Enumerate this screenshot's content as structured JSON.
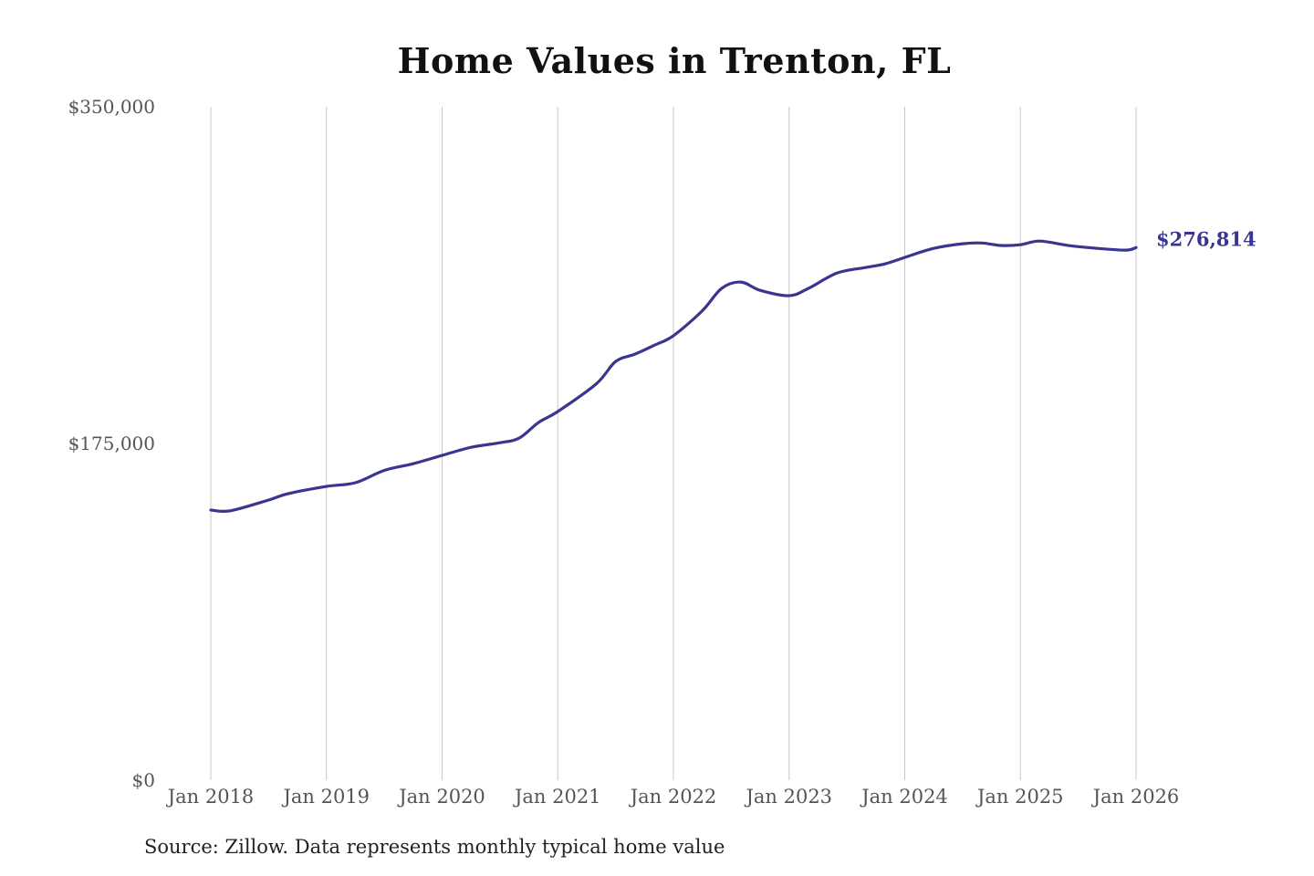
{
  "chart_data": {
    "type": "line",
    "title": "Home Values in Trenton, FL",
    "xlabel": "",
    "ylabel": "",
    "ylim": [
      0,
      350000
    ],
    "xlim": [
      "2018-01",
      "2026-01"
    ],
    "grid": "vertical",
    "y_ticks": [
      "$0",
      "$175,000",
      "$350,000"
    ],
    "y_tick_values": [
      0,
      175000,
      350000
    ],
    "x_ticks": [
      "Jan 2018",
      "Jan 2019",
      "Jan 2020",
      "Jan 2021",
      "Jan 2022",
      "Jan 2023",
      "Jan 2024",
      "Jan 2025",
      "Jan 2026"
    ],
    "x_tick_values": [
      "2018-01",
      "2019-01",
      "2020-01",
      "2021-01",
      "2022-01",
      "2023-01",
      "2024-01",
      "2025-01",
      "2026-01"
    ],
    "line_color": "#3a3591",
    "end_label": "$276,814",
    "series": [
      {
        "x": [
          "2018-01",
          "2018-03",
          "2018-07",
          "2018-09",
          "2019-01",
          "2019-04",
          "2019-07",
          "2019-10",
          "2020-01",
          "2020-04",
          "2020-07",
          "2020-09",
          "2020-11",
          "2021-01",
          "2021-05",
          "2021-07",
          "2021-09",
          "2021-11",
          "2022-01",
          "2022-04",
          "2022-06",
          "2022-08",
          "2022-10",
          "2023-01",
          "2023-03",
          "2023-06",
          "2023-09",
          "2023-11",
          "2024-01",
          "2024-04",
          "2024-07",
          "2024-09",
          "2024-11",
          "2025-01",
          "2025-03",
          "2025-06",
          "2025-09",
          "2025-12",
          "2026-01"
        ],
        "y": [
          140400,
          140000,
          145600,
          148900,
          152700,
          154600,
          161000,
          164500,
          168800,
          173000,
          175400,
          177800,
          185900,
          191600,
          206000,
          217600,
          221400,
          226000,
          231000,
          244000,
          255600,
          258900,
          254600,
          251800,
          255600,
          263600,
          266500,
          268400,
          271700,
          276400,
          278800,
          279200,
          277900,
          278300,
          280200,
          277900,
          276400,
          275500,
          276814
        ]
      }
    ]
  },
  "source": "Source: Zillow. Data represents monthly typical home value"
}
